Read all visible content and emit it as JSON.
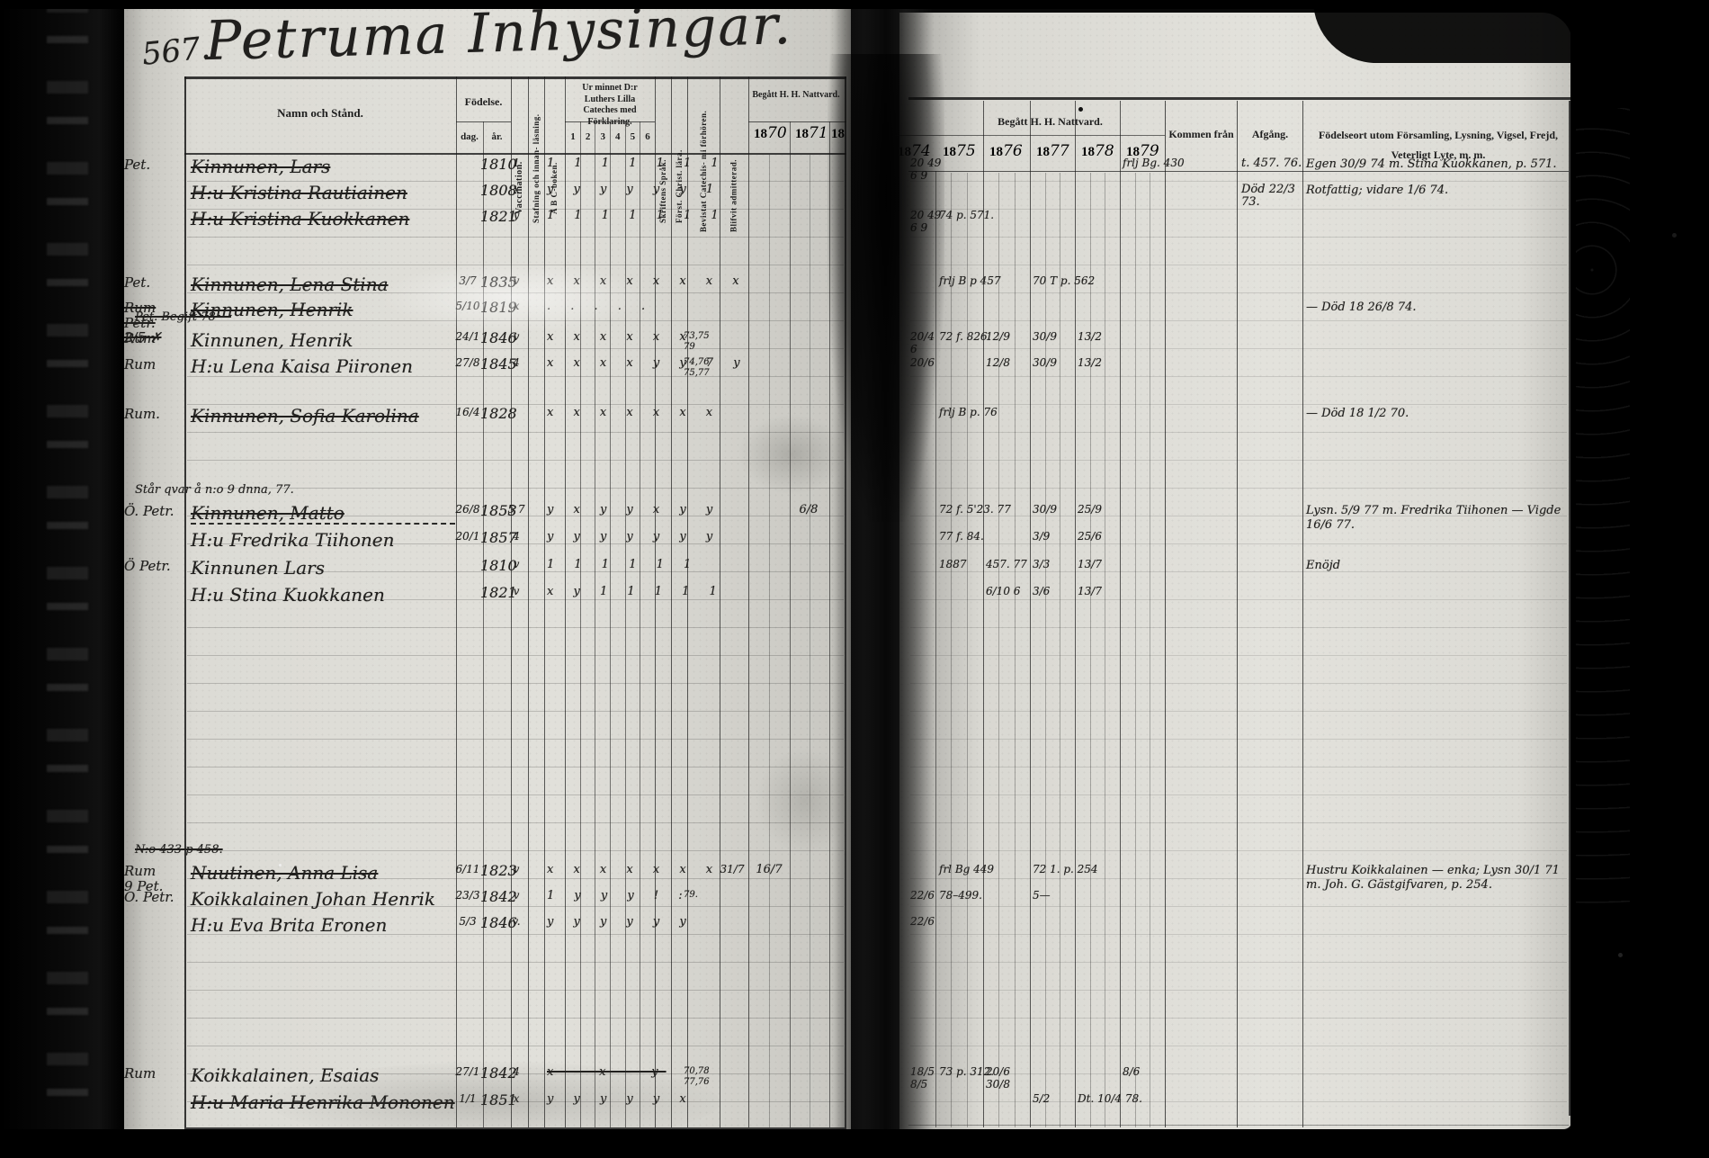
{
  "title": {
    "number": "567.",
    "title": "Petruma Inhysingar."
  },
  "table": {
    "headers": {
      "name": "Namn och Stånd.",
      "birth": "Födelse.",
      "birth_day": "dag.",
      "birth_year": "år.",
      "vaccination": "Vaccination.",
      "spelling": "Stafning och innan- läsning.",
      "abc": "A B C-boken.",
      "catechism": "Ur minnet D:r Luthers Lilla Cateches med Förklaring.",
      "catechism_cols": [
        "1",
        "2",
        "3",
        "4",
        "5",
        "6"
      ],
      "scripture": "Skriftens Språk.",
      "christ": "Först. Christ. lära.",
      "attended": "Bevistat Catechis- mi förhören.",
      "admitted": "Blifvit admitterad.",
      "communion_left": "Begått H. H. Nattvard.",
      "communion_right": "Begått H. H. Nattvard.",
      "years_left": [
        "1870",
        "1871",
        "18"
      ],
      "years_right": [
        "1874",
        "1875",
        "1876",
        "1877",
        "1878",
        "1879"
      ],
      "come_from": "Kommen från",
      "departure": "Afgång.",
      "birthplace": "Födelseort utom Församling, Lysning, Vigsel, Frejd, Veterligt Lyte, m. m."
    },
    "rows": [
      {
        "margin": "Pet.",
        "name": "Kinnunen, Lars",
        "name_struck": true,
        "year": "1810",
        "vac": "1",
        "cat": "1 1 1 1 1 1 1",
        "y1874": "20 49\n6 9",
        "y1879": "frlj Bg. 430",
        "departure": "t. 457. 76.",
        "notes": "Egen 30/9 74 m. Stina Kuokkanen, p. 571."
      },
      {
        "name": "H:u Kristina Rautiainen",
        "name_struck": true,
        "year": "1808",
        "vac": "x",
        "cat": "y y y y y y 1",
        "departure": "Död 22/3 73.",
        "notes": "Rotfattig;\nvidare 1/6 74."
      },
      {
        "name": "H:u Kristina Kuokkanen",
        "name_struck": true,
        "year": "1821",
        "vac": "y",
        "cat": "1 1 1 1 1 1 1",
        "y1874": "20 49\n6 9",
        "y1875": "74 p. 571."
      },
      {
        "margin": "Pet.",
        "name": "Kinnunen, Lena Stina",
        "name_struck": true,
        "day": "3/7",
        "year": "1835",
        "vac": "v",
        "cat": "x x x x x x x x",
        "y1875": "frlj B p 457",
        "y1877": "70 T p. 562"
      },
      {
        "margin": "Rum Petr.\n2/5 ✗",
        "margin_struck": true,
        "name": "Kinnunen, Henrik",
        "name_struck": true,
        "day": "5/10",
        "year": "1819",
        "vac": "x",
        "cat": ". . . . .",
        "notes": "— Död 18 26/8 74."
      },
      {
        "margin": "Rum",
        "margin_note": "Pet. Begift 78 —",
        "margin_note_struck": true,
        "name": "Kinnunen, Henrik",
        "day": "24/1",
        "year": "1846",
        "vac": "v",
        "cat": "x x x x x x",
        "att": "73,75\n79",
        "y1874": "20/4\n6",
        "y1875": "72 f. 826.",
        "y1876": "12/9",
        "y1877": "30/9",
        "y1878": "13/2"
      },
      {
        "margin": "Rum",
        "name": "H:u Lena Kaisa Piironen",
        "day": "27/8",
        "year": "1845",
        "vac": "4",
        "cat": "x x x x y y 7 y",
        "att": "74,76\n75,77",
        "y1874": "20/6",
        "y1876": "12/8",
        "y1877": "30/9",
        "y1878": "13/2"
      },
      {
        "margin": "Rum.",
        "name": "Kinnunen, Sofia Karolina",
        "name_struck": true,
        "day": "16/4",
        "year": "1828",
        "cat": "x x x x x x x",
        "y1875": "frlj B p. 76",
        "notes": "— Död 18 1/2 70."
      },
      {
        "margin": "Ö. Petr.",
        "margin_note": "Står qvar å n:o 9 dnna, 77.",
        "name": "Kinnunen, Matto",
        "name_struck": true,
        "name_dashed": true,
        "day": "26/8",
        "year": "1853",
        "vac": "5 7",
        "cat": "y x y y x y y",
        "y1871": "6/8",
        "y1875": "72 f. 5'23. 77",
        "y1877": "30/9",
        "y1878": "25/9",
        "notes": "Lysn. 5/9 77 m. Fredrika Tiihonen — Vigde 16/6 77."
      },
      {
        "name": "H:u Fredrika Tiihonen",
        "day": "20/1",
        "year": "1857",
        "vac": "4",
        "cat": "y y y y y y y",
        "y1875": "77 f. 84.",
        "y1877": "3/9",
        "y1878": "25/6"
      },
      {
        "margin": "Ö Petr.",
        "name": "Kinnunen Lars",
        "year": "1810",
        "vac": "v",
        "cat": "1 1 1 1 1 1",
        "y1875": "1887",
        "y1876": "457. 77",
        "y1877": "3/3",
        "y1878": "13/7",
        "notes": "Enöjd"
      },
      {
        "name": "H:u Stina Kuokkanen",
        "year": "1821",
        "vac": "v",
        "cat": "x y 1 1 1 1 1",
        "y1876": "6/10 6",
        "y1877": "3/6",
        "y1878": "13/7"
      },
      {
        "margin": "Rum\n9 Pet.",
        "margin_note": "N:o 433 p 458.",
        "margin_note_struck": true,
        "name": "Nuutinen, Anna Lisa",
        "name_struck": true,
        "day": "6/11",
        "year": "1823",
        "vac": "v",
        "cat": "x x x x x x x",
        "adm": "31/7",
        "y1870": "16/7",
        "y1875": "frl Bg 449",
        "y1877": "72 1. p. 254",
        "notes": "Hustru Koikkalainen — enka; Lysn 30/1 71 m. Joh. G. Gästgifvaren, p. 254."
      },
      {
        "margin": "O. Petr.",
        "name": "Koikkalainen Johan Henrik",
        "day": "23/3",
        "year": "1842",
        "vac": "v",
        "cat": "1 y y y ! :",
        "att": "79.",
        "y1874": "22/6",
        "y1875": "78–499.",
        "y1877": "5—"
      },
      {
        "name": "H:u Eva Brita Eronen",
        "day": "5/3",
        "year": "1846",
        "vac": "v.",
        "cat": "y y y y y y",
        "y1874": "22/6"
      },
      {
        "margin": "Rum",
        "name": "Koikkalainen, Esaias",
        "day": "27/1",
        "year": "1842",
        "vac": "4",
        "cat": "x – x – y",
        "cat_struck": true,
        "att": "70,78\n77,76",
        "y1874": "18/5\n8/5",
        "y1875": "73 p. 312.",
        "y1876": "20/6\n30/8",
        "y1879": "8/6"
      },
      {
        "name": "H:u Maria Henrika Mononen",
        "name_struck": true,
        "day": "1/1",
        "year": "1851",
        "vac": "x",
        "cat": "y y y y y x",
        "y1877": "5/2",
        "y1878": "Dt. 10/4 78."
      }
    ]
  }
}
